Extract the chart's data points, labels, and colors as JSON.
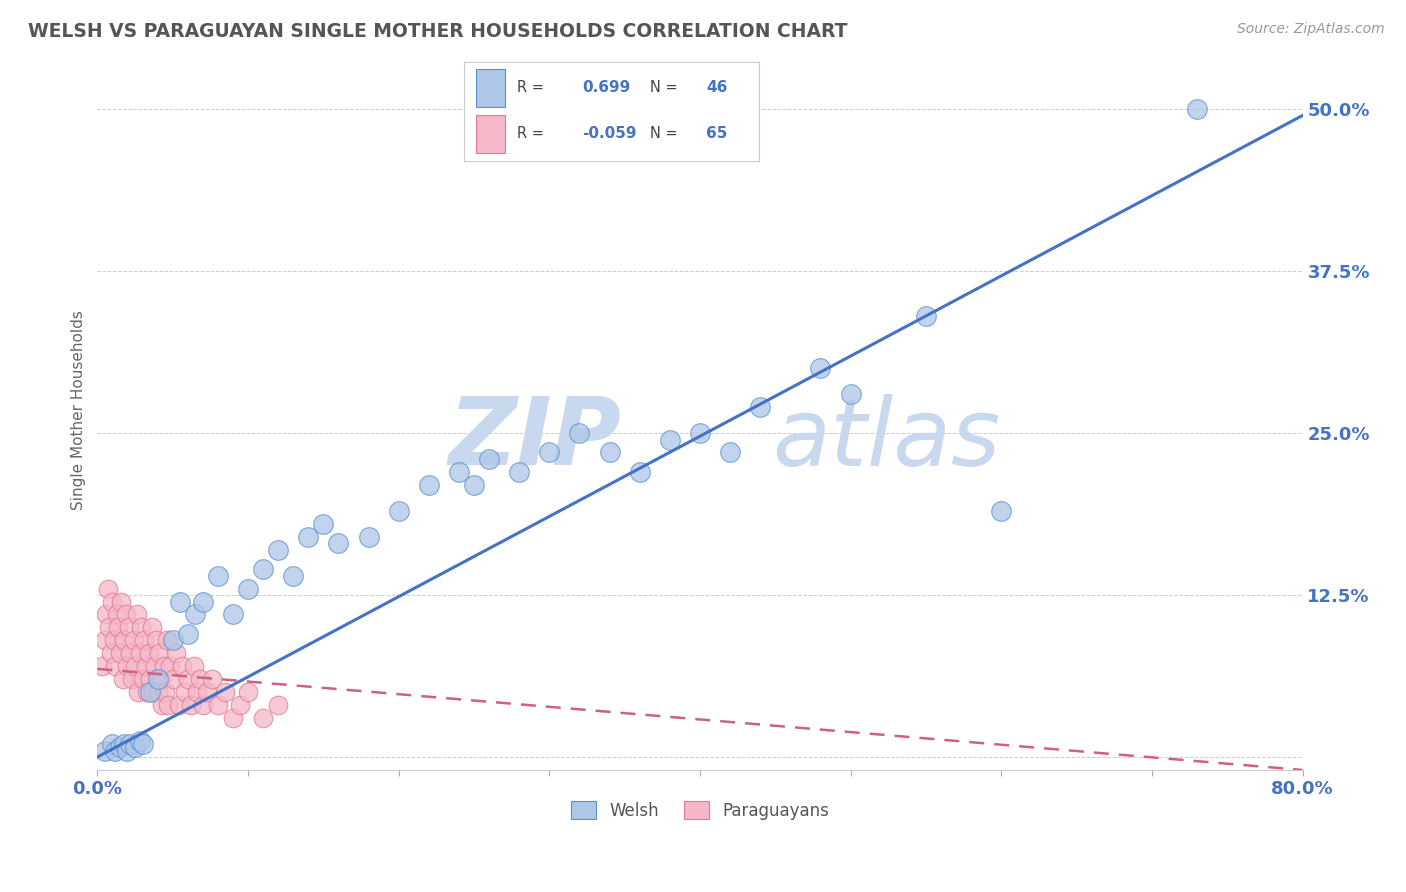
{
  "title": "WELSH VS PARAGUAYAN SINGLE MOTHER HOUSEHOLDS CORRELATION CHART",
  "source": "Source: ZipAtlas.com",
  "ylabel": "Single Mother Households",
  "xlim": [
    0.0,
    0.8
  ],
  "ylim": [
    -0.01,
    0.545
  ],
  "welsh_R": 0.699,
  "welsh_N": 46,
  "paraguayan_R": -0.059,
  "paraguayan_N": 65,
  "welsh_color": "#aec6e8",
  "welsh_edge_color": "#5b8fc9",
  "welsh_line_color": "#4472c4",
  "paraguayan_color": "#f5b8c8",
  "paraguayan_edge_color": "#e07898",
  "paraguayan_line_color": "#d06080",
  "background_color": "#ffffff",
  "welsh_scatter_x": [
    0.005,
    0.01,
    0.012,
    0.015,
    0.018,
    0.02,
    0.022,
    0.025,
    0.028,
    0.03,
    0.035,
    0.04,
    0.05,
    0.055,
    0.06,
    0.065,
    0.07,
    0.08,
    0.09,
    0.1,
    0.11,
    0.12,
    0.13,
    0.14,
    0.15,
    0.16,
    0.18,
    0.2,
    0.22,
    0.24,
    0.25,
    0.26,
    0.28,
    0.3,
    0.32,
    0.34,
    0.36,
    0.38,
    0.4,
    0.42,
    0.44,
    0.48,
    0.5,
    0.55,
    0.6,
    0.73
  ],
  "welsh_scatter_y": [
    0.005,
    0.01,
    0.005,
    0.008,
    0.01,
    0.005,
    0.01,
    0.008,
    0.012,
    0.01,
    0.05,
    0.06,
    0.09,
    0.12,
    0.095,
    0.11,
    0.12,
    0.14,
    0.11,
    0.13,
    0.145,
    0.16,
    0.14,
    0.17,
    0.18,
    0.165,
    0.17,
    0.19,
    0.21,
    0.22,
    0.21,
    0.23,
    0.22,
    0.235,
    0.25,
    0.235,
    0.22,
    0.245,
    0.25,
    0.235,
    0.27,
    0.3,
    0.28,
    0.34,
    0.19,
    0.5
  ],
  "paraguayan_scatter_x": [
    0.003,
    0.005,
    0.006,
    0.007,
    0.008,
    0.009,
    0.01,
    0.011,
    0.012,
    0.013,
    0.014,
    0.015,
    0.016,
    0.017,
    0.018,
    0.019,
    0.02,
    0.021,
    0.022,
    0.023,
    0.024,
    0.025,
    0.026,
    0.027,
    0.028,
    0.029,
    0.03,
    0.031,
    0.032,
    0.033,
    0.034,
    0.035,
    0.036,
    0.037,
    0.038,
    0.039,
    0.04,
    0.041,
    0.042,
    0.043,
    0.044,
    0.045,
    0.046,
    0.047,
    0.048,
    0.05,
    0.052,
    0.054,
    0.056,
    0.058,
    0.06,
    0.062,
    0.064,
    0.066,
    0.068,
    0.07,
    0.073,
    0.076,
    0.08,
    0.085,
    0.09,
    0.095,
    0.1,
    0.11,
    0.12
  ],
  "paraguayan_scatter_y": [
    0.07,
    0.09,
    0.11,
    0.13,
    0.1,
    0.08,
    0.12,
    0.09,
    0.07,
    0.11,
    0.1,
    0.08,
    0.12,
    0.06,
    0.09,
    0.11,
    0.07,
    0.1,
    0.08,
    0.06,
    0.09,
    0.07,
    0.11,
    0.05,
    0.08,
    0.1,
    0.06,
    0.09,
    0.07,
    0.05,
    0.08,
    0.06,
    0.1,
    0.05,
    0.07,
    0.09,
    0.05,
    0.08,
    0.06,
    0.04,
    0.07,
    0.05,
    0.09,
    0.04,
    0.07,
    0.06,
    0.08,
    0.04,
    0.07,
    0.05,
    0.06,
    0.04,
    0.07,
    0.05,
    0.06,
    0.04,
    0.05,
    0.06,
    0.04,
    0.05,
    0.03,
    0.04,
    0.05,
    0.03,
    0.04
  ],
  "welsh_line_x0": 0.0,
  "welsh_line_y0": 0.0,
  "welsh_line_x1": 0.8,
  "welsh_line_y1": 0.495,
  "para_line_x0": 0.0,
  "para_line_y0": 0.068,
  "para_line_x1": 0.8,
  "para_line_y1": -0.01
}
